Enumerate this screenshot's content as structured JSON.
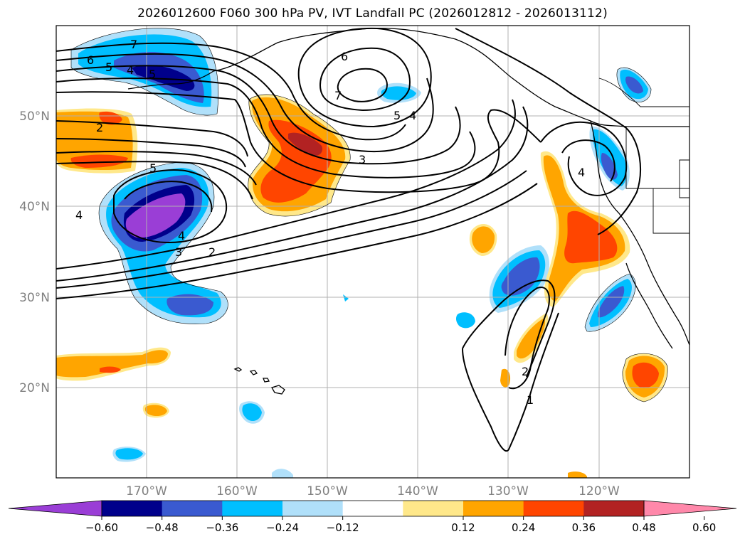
{
  "title": "2026012600 F060 300 hPa PV, IVT Landfall PC (2026012812 - 2026013112)",
  "map": {
    "projection": "PlateCarree",
    "lon_range": [
      -180,
      -110
    ],
    "lat_range": [
      10,
      60
    ],
    "gridlines": true,
    "lat_labels": [
      "50°N",
      "40°N",
      "30°N",
      "20°N"
    ],
    "lon_labels": [
      "170°W",
      "160°W",
      "150°W",
      "140°W",
      "130°W",
      "120°W"
    ]
  },
  "colorbar": {
    "orientation": "horizontal",
    "extend": "both",
    "ticks": [
      "−0.60",
      "−0.48",
      "−0.36",
      "−0.24",
      "−0.12",
      "0.12",
      "0.24",
      "0.36",
      "0.48",
      "0.60"
    ],
    "bins": [
      {
        "color": "#9a3ed6"
      },
      {
        "color": "#00008b"
      },
      {
        "color": "#3a5ad0"
      },
      {
        "color": "#00bfff"
      },
      {
        "color": "#b0e0fa"
      },
      {
        "color": "#ffffff"
      },
      {
        "color": "#ffe88a"
      },
      {
        "color": "#ffa500"
      },
      {
        "color": "#ff4500"
      },
      {
        "color": "#b22222"
      },
      {
        "color": "#ff88aa"
      }
    ]
  },
  "contour_labels": [
    "7",
    "6",
    "5",
    "4",
    "5",
    "2",
    "5",
    "4",
    "3",
    "2",
    "4",
    "6",
    "7",
    "5",
    "4",
    "3",
    "4",
    "2",
    "1"
  ]
}
